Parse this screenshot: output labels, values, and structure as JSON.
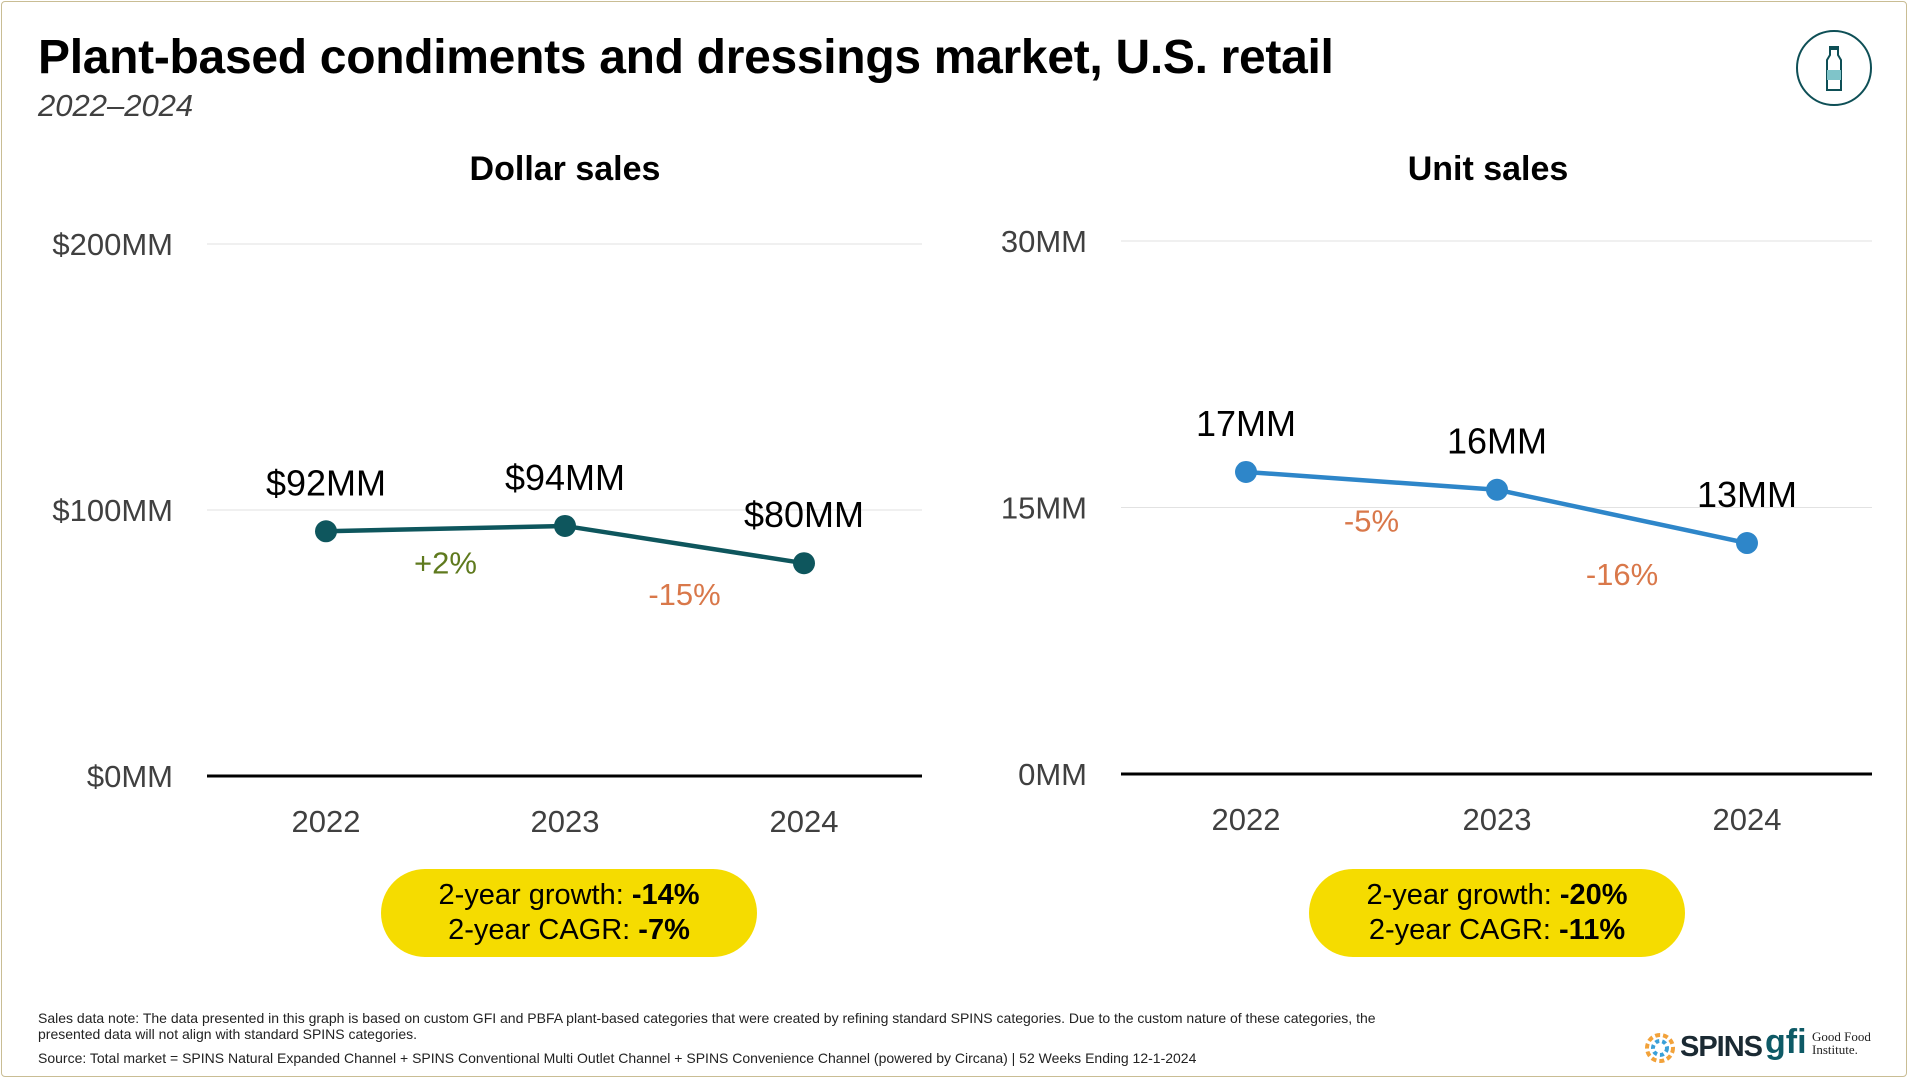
{
  "header": {
    "title": "Plant-based condiments and dressings market, U.S. retail",
    "subtitle": "2022–2024",
    "badge_icon": "bottle-icon"
  },
  "colors": {
    "dollar_line": "#0e565d",
    "unit_line": "#2e86c9",
    "positive": "#5f7a1e",
    "negative": "#d9784a",
    "pill": "#f5dc00",
    "border": "#c9bd94"
  },
  "chart_data": [
    {
      "type": "line",
      "title": "Dollar sales",
      "categories": [
        "2022",
        "2023",
        "2024"
      ],
      "values": [
        92,
        94,
        80
      ],
      "value_labels": [
        "$92MM",
        "$94MM",
        "$80MM"
      ],
      "changes": [
        "+2%",
        "-15%"
      ],
      "ylim": [
        0,
        200
      ],
      "yticks": [
        "$0MM",
        "$100MM",
        "$200MM"
      ],
      "grid": true,
      "summary": {
        "growth_label": "2-year growth:",
        "growth_value": "-14%",
        "cagr_label": "2-year CAGR:",
        "cagr_value": "-7%"
      }
    },
    {
      "type": "line",
      "title": "Unit sales",
      "categories": [
        "2022",
        "2023",
        "2024"
      ],
      "values": [
        17,
        16,
        13
      ],
      "value_labels": [
        "17MM",
        "16MM",
        "13MM"
      ],
      "changes": [
        "-5%",
        "-16%"
      ],
      "ylim": [
        0,
        30
      ],
      "yticks": [
        "0MM",
        "15MM",
        "30MM"
      ],
      "grid": true,
      "summary": {
        "growth_label": "2-year growth:",
        "growth_value": "-20%",
        "cagr_label": "2-year CAGR:",
        "cagr_value": "-11%"
      }
    }
  ],
  "footer": {
    "note": "Sales data note: The data presented in this graph is based on custom GFI and PBFA plant-based categories that were created by refining standard SPINS categories. Due to the custom nature of these categories, the presented data will not align with standard SPINS categories.",
    "source": "Source: Total market = SPINS Natural Expanded Channel + SPINS Conventional Multi Outlet Channel + SPINS Convenience Channel (powered by Circana) | 52 Weeks Ending 12-1-2024",
    "logo_spins": "SPINS",
    "logo_gfi": "gfi",
    "logo_gfi_name_1": "Good Food",
    "logo_gfi_name_2": "Institute."
  }
}
